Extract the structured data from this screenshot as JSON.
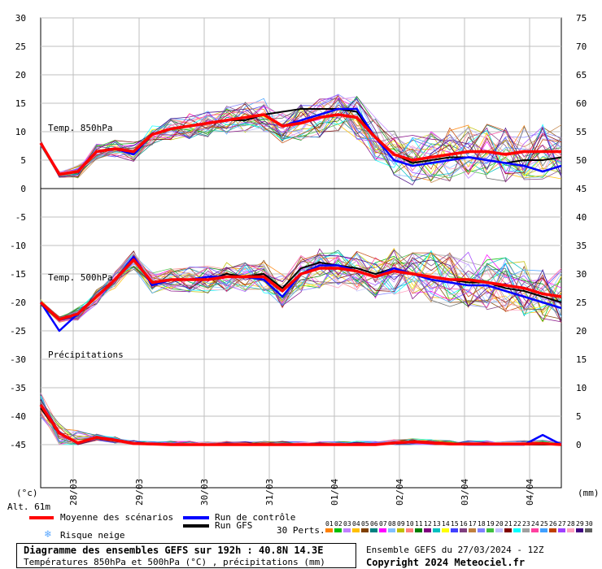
{
  "chart_data": {
    "type": "line",
    "x_ticks": [
      "28/03",
      "29/03",
      "30/03",
      "31/03",
      "01/04",
      "02/04",
      "03/04",
      "04/04"
    ],
    "panels": [
      {
        "label": "Temp. 850hPa",
        "left_ticks": [
          "30",
          "25",
          "20",
          "15",
          "10",
          "5",
          "0"
        ],
        "right_ticks": [
          "75",
          "70",
          "65",
          "60",
          "55",
          "50",
          "45"
        ],
        "ylim": [
          0,
          30
        ],
        "series": [
          {
            "name": "Moyenne des scénarios",
            "values": [
              8,
              2.5,
              3,
              6.5,
              7,
              6.5,
              9.5,
              10.5,
              11,
              11.5,
              12,
              12.5,
              13,
              11,
              11.5,
              12.5,
              13,
              12.5,
              9,
              6,
              5,
              5.5,
              6,
              6.5,
              6.5,
              6,
              6.5,
              6.5,
              6.5
            ]
          },
          {
            "name": "Run de contrôle",
            "values": [
              8,
              2.5,
              3,
              6.5,
              7,
              6,
              9.5,
              10.5,
              11,
              11.5,
              12,
              12.5,
              13,
              11,
              12,
              13,
              14,
              14,
              9,
              5,
              4,
              4.5,
              5,
              5.5,
              5,
              4.5,
              4,
              3,
              4
            ]
          },
          {
            "name": "Run GFS",
            "values": [
              8,
              2.5,
              3,
              6.5,
              7,
              6.5,
              9.5,
              10.5,
              11,
              11.5,
              12,
              12,
              13,
              13.5,
              14,
              14,
              14,
              13.5,
              9,
              6,
              4.5,
              5,
              5.5,
              5.5,
              5,
              4.5,
              5,
              5,
              5.5
            ]
          }
        ]
      },
      {
        "label": "Temp. 500hPa",
        "left_ticks": [
          "-5",
          "-10",
          "-15",
          "-20",
          "-25"
        ],
        "right_ticks": [
          "40",
          "35",
          "30",
          "25",
          "20"
        ],
        "ylim": [
          -30,
          0
        ],
        "series": [
          {
            "name": "Moyenne des scénarios",
            "values": [
              -20,
              -23,
              -22,
              -19,
              -16,
              -12.5,
              -16.5,
              -16,
              -16,
              -16,
              -15.5,
              -15.5,
              -15.5,
              -18,
              -15,
              -14,
              -14,
              -14.5,
              -15.5,
              -14.5,
              -15,
              -15.5,
              -16,
              -16,
              -16.5,
              -17,
              -17.5,
              -18.5,
              -19
            ]
          },
          {
            "name": "Run de contrôle",
            "values": [
              -20,
              -25,
              -22,
              -19,
              -16,
              -12,
              -17,
              -16,
              -16,
              -15.5,
              -15.5,
              -15.5,
              -16,
              -19,
              -15,
              -13.5,
              -13.5,
              -14.5,
              -15.5,
              -14,
              -15,
              -16,
              -16.5,
              -17,
              -17,
              -18,
              -19,
              -20,
              -21
            ]
          },
          {
            "name": "Run GFS",
            "values": [
              -20,
              -23,
              -22,
              -19,
              -16,
              -12.5,
              -16.5,
              -16,
              -16,
              -16,
              -15,
              -15.5,
              -15,
              -17.5,
              -14,
              -13,
              -13.5,
              -14,
              -15,
              -14,
              -15,
              -15.5,
              -16,
              -16.5,
              -16.5,
              -17.5,
              -18,
              -19,
              -20
            ]
          }
        ]
      },
      {
        "label": "Précipitations",
        "right_ticks": [
          "15",
          "10",
          "5",
          "0"
        ],
        "left_ticks": [
          "-30",
          "-35",
          "-40",
          "-45"
        ],
        "ylim": [
          0,
          15
        ],
        "series": [
          {
            "name": "Moyenne des scénarios",
            "values": [
              7,
              2,
              0.3,
              1.3,
              0.8,
              0.2,
              0.1,
              0,
              0,
              0,
              0,
              0,
              0,
              0,
              0,
              0,
              0,
              0,
              0,
              0.3,
              0.5,
              0.3,
              0.1,
              0.1,
              0.1,
              0.1,
              0.1,
              0.2,
              0
            ]
          },
          {
            "name": "Run de contrôle",
            "values": [
              7,
              2,
              0.3,
              1.3,
              0.8,
              0.2,
              0.1,
              0,
              0,
              0,
              0,
              0,
              0,
              0,
              0,
              0,
              0,
              0,
              0,
              0.3,
              0.5,
              0.4,
              0.1,
              0,
              0,
              0,
              0,
              1.7,
              0
            ]
          },
          {
            "name": "Run GFS",
            "values": [
              6.5,
              2,
              0.3,
              1.2,
              0.7,
              0.2,
              0,
              0,
              0,
              0,
              0,
              0,
              0,
              0,
              0,
              0,
              0,
              0,
              0,
              0.2,
              0.4,
              0.3,
              0.1,
              0,
              0,
              0,
              0,
              0,
              0
            ]
          }
        ]
      }
    ],
    "left_unit": "(°c)",
    "right_unit": "(mm)",
    "legend_position": "bottom"
  },
  "colors": {
    "mean": "#ff0000",
    "control": "#0000ff",
    "gfs": "#000000",
    "grid": "#bfbfbf",
    "snow": "#5aa8ff"
  },
  "header": {
    "altitude": "Alt. 61m"
  },
  "legend": {
    "mean": "Moyenne des scénarios",
    "control": "Run de contrôle",
    "gfs": "Run GFS",
    "snow": "Risque neige",
    "perts": "30 Perts.",
    "pert_numbers": [
      "01",
      "02",
      "03",
      "04",
      "05",
      "06",
      "07",
      "08",
      "09",
      "10",
      "11",
      "12",
      "13",
      "14",
      "15",
      "16",
      "17",
      "18",
      "19",
      "20",
      "21",
      "22",
      "23",
      "24",
      "25",
      "26",
      "27",
      "28",
      "29",
      "30"
    ],
    "pert_colors": [
      "#ff8000",
      "#00c000",
      "#c080ff",
      "#ffc000",
      "#804000",
      "#008080",
      "#ff00ff",
      "#80c0ff",
      "#c0c000",
      "#ff8080",
      "#008000",
      "#800080",
      "#00c0c0",
      "#ffff00",
      "#4040ff",
      "#804080",
      "#c08040",
      "#8080ff",
      "#40c040",
      "#c0c0ff",
      "#800000",
      "#00ffff",
      "#a0a0a0",
      "#ff40a0",
      "#40a0ff",
      "#c04000",
      "#a040ff",
      "#ffa0c0",
      "#400080",
      "#606060"
    ]
  },
  "footer": {
    "title": "Diagramme des ensembles GEFS sur 192h : 40.8N 14.3E",
    "subtitle": "Températures 850hPa et 500hPa (°C) , précipitations (mm)",
    "run": "Ensemble GEFS du 27/03/2024 - 12Z",
    "copyright": "Copyright 2024 Meteociel.fr"
  }
}
